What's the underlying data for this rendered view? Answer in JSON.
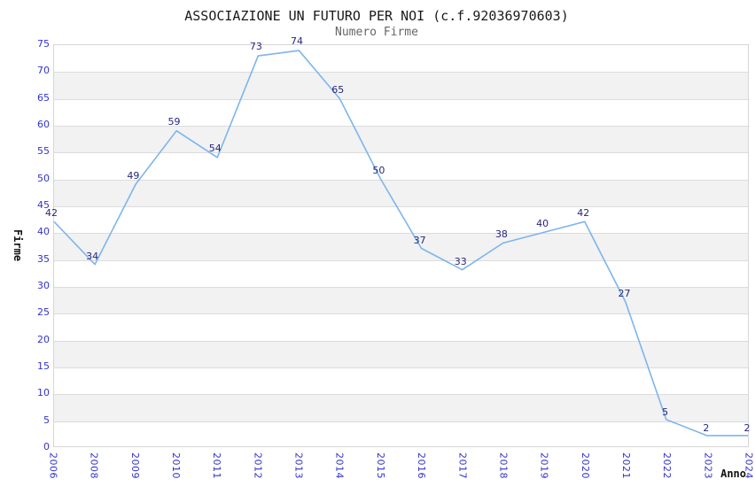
{
  "chart_data": {
    "type": "line",
    "title": "ASSOCIAZIONE UN FUTURO PER NOI (c.f.92036970603)",
    "subtitle": "Numero Firme",
    "xlabel": "Anno",
    "ylabel": "Firme",
    "x": [
      "2006",
      "2008",
      "2009",
      "2010",
      "2011",
      "2012",
      "2013",
      "2014",
      "2015",
      "2016",
      "2017",
      "2018",
      "2019",
      "2020",
      "2021",
      "2022",
      "2023",
      "2024"
    ],
    "values": [
      42,
      34,
      49,
      59,
      54,
      73,
      74,
      65,
      50,
      37,
      33,
      38,
      40,
      42,
      27,
      5,
      2,
      2
    ],
    "ylim": [
      0,
      75
    ],
    "ytick_step": 5,
    "grid": "horizontal-only",
    "legend": "none",
    "data_labels_shown": true,
    "colors": {
      "line": "#7cb5ec",
      "alt_band": "#f2f2f2",
      "gridline": "#dcdcdc",
      "axis_tick_label": "#3232cd",
      "data_label": "#26267d",
      "title": "#1a1a1a",
      "subtitle": "#666666"
    }
  }
}
